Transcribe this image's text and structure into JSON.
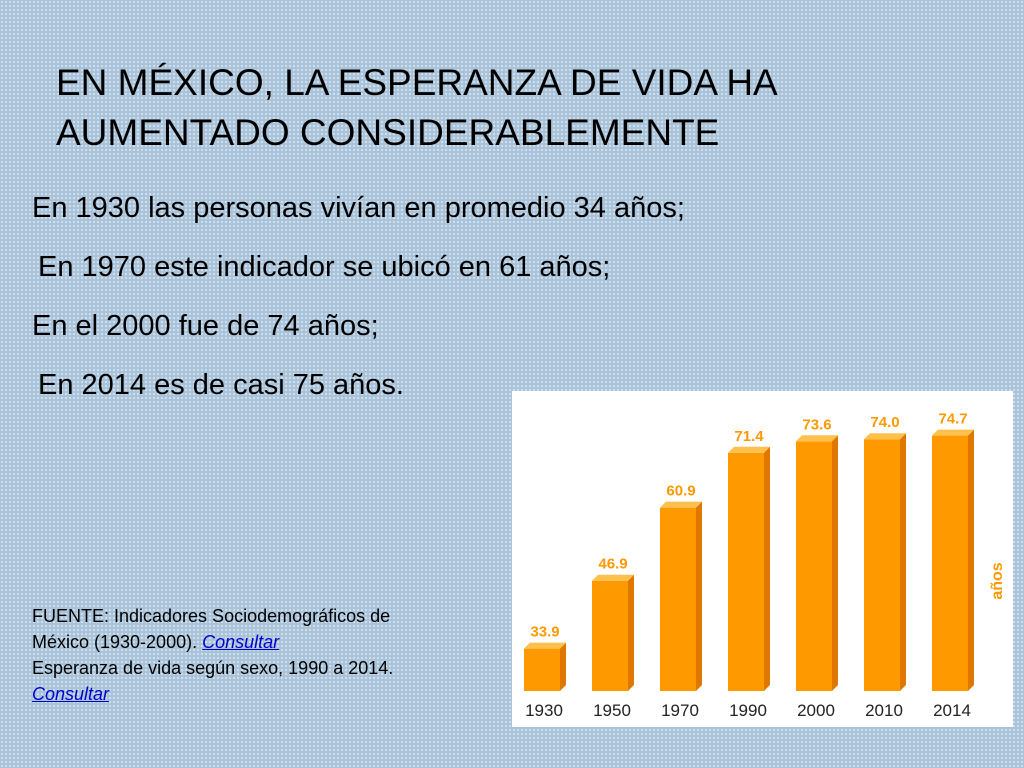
{
  "slide": {
    "title_line1": "EN MÉXICO, LA ESPERANZA DE VIDA HA",
    "title_line2": "AUMENTADO CONSIDERABLEMENTE",
    "statements": [
      "En 1930 las personas vivían en promedio 34 años;",
      "En 1970 este indicador se ubicó en 61 años;",
      "En el 2000 fue de 74 años;",
      "En 2014 es de casi 75 años."
    ],
    "source": {
      "line1_prefix": "FUENTE: Indicadores Sociodemográficos de",
      "line2_prefix": "México (1930-2000). ",
      "link1": "Consultar",
      "line3": "Esperanza de vida según sexo, 1990 a 2014.",
      "link2": "Consultar"
    }
  },
  "colors": {
    "bar_front": "#ff9900",
    "bar_side": "#e07800",
    "bar_top": "#ffc04d",
    "value_label": "#ff9900",
    "unit_label": "#ff9900",
    "year_label": "#222222"
  },
  "chart_data": {
    "type": "bar",
    "categories": [
      "1930",
      "1950",
      "1970",
      "1990",
      "2000",
      "2010",
      "2014"
    ],
    "values": [
      33.9,
      46.9,
      60.9,
      71.4,
      73.6,
      74.0,
      74.7
    ],
    "value_labels": [
      "33.9",
      "46.9",
      "60.9",
      "71.4",
      "73.6",
      "74.0",
      "74.7"
    ],
    "ylabel": "años",
    "ylim": [
      30,
      75
    ],
    "grid": false,
    "legend": "none",
    "style": "3d"
  }
}
